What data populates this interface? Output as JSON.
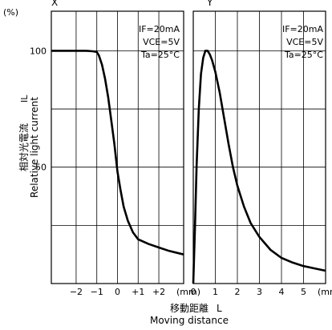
{
  "chart_data": [
    {
      "type": "line",
      "panel_label": "X",
      "y_unit_label": "(%)",
      "x_unit_label": "(mm)",
      "xlim": [
        -3.2,
        3.2
      ],
      "ylim": [
        0,
        117
      ],
      "x_ticks": [
        -2,
        -1,
        0,
        1,
        2
      ],
      "x_tick_labels": [
        "−2",
        "−1",
        "0",
        "+1",
        "+2"
      ],
      "y_ticks": [
        50,
        100
      ],
      "y_tick_labels": [
        "50",
        "100"
      ],
      "grid": true,
      "conditions": [
        "IF=20mA",
        "VCE=5V",
        "Ta=25°C"
      ],
      "series": [
        {
          "x": [
            -3.2,
            -2.5,
            -2.0,
            -1.5,
            -1.2,
            -1.0,
            -0.9,
            -0.75,
            -0.6,
            -0.45,
            -0.3,
            -0.15,
            0.0,
            0.15,
            0.3,
            0.5,
            0.75,
            1.0,
            1.5,
            2.0,
            2.5,
            3.2
          ],
          "y": [
            100,
            100,
            100,
            100,
            99.8,
            99.5,
            98,
            94,
            88,
            80,
            70,
            60,
            48,
            40,
            33,
            27,
            22,
            19,
            17,
            15.5,
            14,
            12.5
          ]
        }
      ]
    },
    {
      "type": "line",
      "panel_label": "Y",
      "x_unit_label": "(mm)",
      "xlim": [
        0,
        6
      ],
      "ylim": [
        0,
        117
      ],
      "x_ticks": [
        0,
        1,
        2,
        3,
        4,
        5
      ],
      "x_tick_labels": [
        "0",
        "1",
        "2",
        "3",
        "4",
        "5"
      ],
      "grid": true,
      "conditions": [
        "IF=20mA",
        "VCE=5V",
        "Ta=25°C"
      ],
      "series": [
        {
          "x": [
            0.0,
            0.08,
            0.15,
            0.25,
            0.35,
            0.45,
            0.55,
            0.65,
            0.75,
            0.85,
            1.0,
            1.2,
            1.4,
            1.6,
            1.8,
            2.0,
            2.3,
            2.6,
            3.0,
            3.5,
            4.0,
            4.5,
            5.0,
            5.5,
            6.0
          ],
          "y": [
            0,
            25,
            50,
            75,
            90,
            97,
            100,
            100,
            98.5,
            96,
            91,
            82,
            71,
            60,
            50,
            42,
            33,
            26,
            20,
            14.5,
            11,
            9,
            7.5,
            6.5,
            5.5
          ]
        }
      ]
    }
  ],
  "y_axis_title_jp": "相対光電流",
  "y_axis_title_en": "Relative light current",
  "y_axis_symbol": "IL",
  "x_axis_title_jp": "移動距離",
  "x_axis_symbol": "L",
  "x_axis_title_en": "Moving distance"
}
